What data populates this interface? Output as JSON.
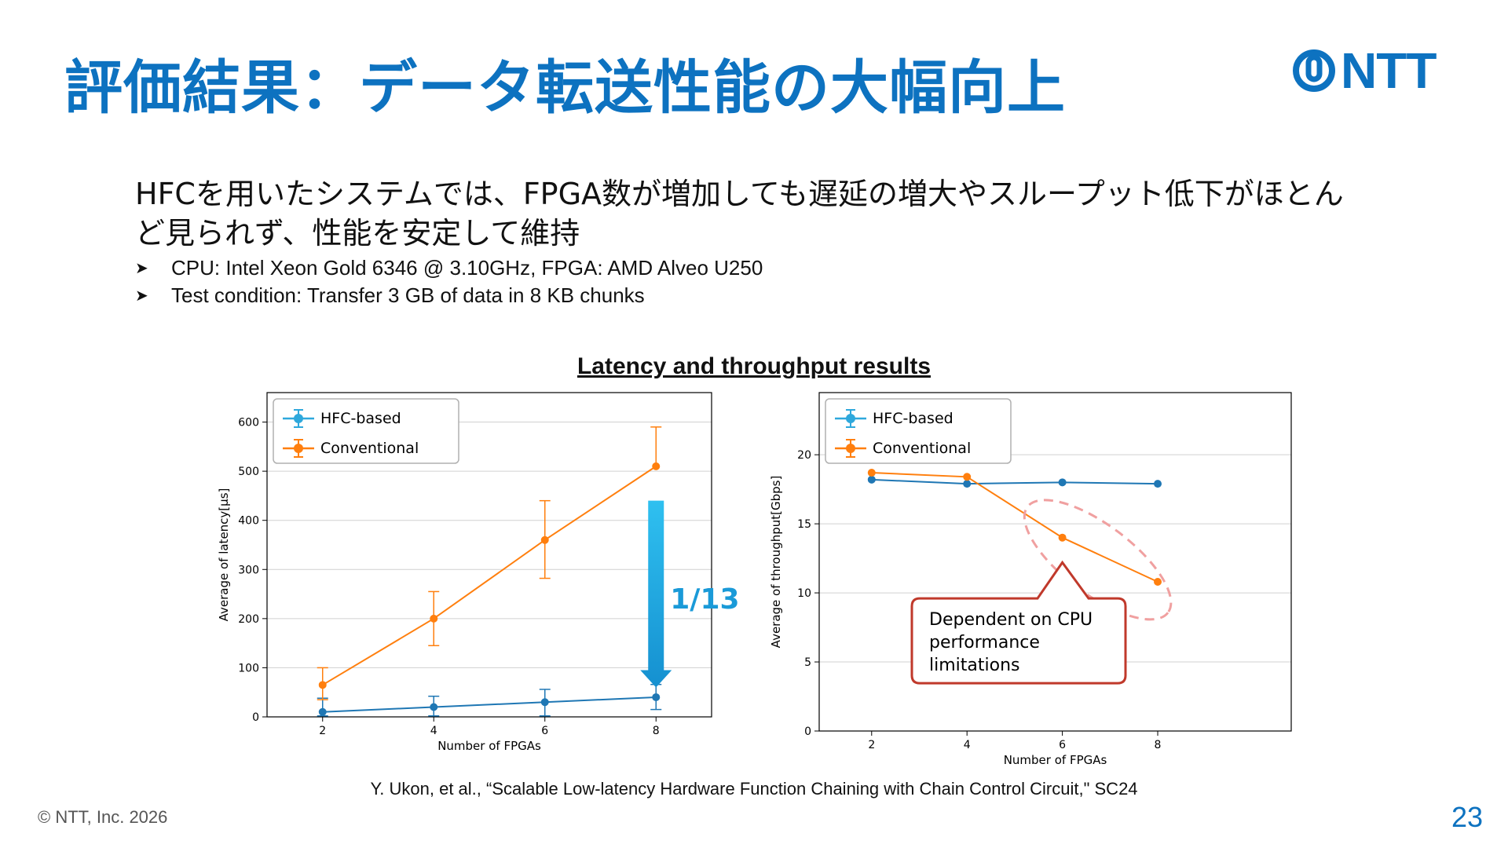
{
  "title": "評価結果：データ転送性能の大幅向上",
  "logo": {
    "text": "NTT",
    "color": "#0d72c0"
  },
  "lead_text": "HFCを用いたシステムでは、FPGA数が増加しても遅延の増大やスループット低下がほとんど見られず、性能を安定して維持",
  "bullets": [
    "CPU: Intel Xeon Gold 6346 @ 3.10GHz, FPGA: AMD Alveo U250",
    "Test condition: Transfer 3 GB of data in 8 KB chunks"
  ],
  "chart_section_title": "Latency and throughput results",
  "citation": "Y. Ukon, et al., “Scalable Low-latency Hardware Function Chaining with Chain Control Circuit,\" SC24",
  "copyright": "© NTT, Inc.  2026",
  "page_number": "23",
  "colors": {
    "hfc": "#1f77b4",
    "hfc_legend": "#2ea8dc",
    "conventional": "#ff7f0e",
    "accent": "#0d72c0",
    "callout": "#c0392b"
  },
  "chart_data": [
    {
      "type": "line",
      "xlabel": "Number of FPGAs",
      "ylabel": "Average of latency[μs]",
      "x": [
        2,
        4,
        6,
        8
      ],
      "ylim": [
        0,
        660
      ],
      "yticks": [
        0,
        100,
        200,
        300,
        400,
        500,
        600
      ],
      "grid": true,
      "legend_position": "top-left",
      "series": [
        {
          "name": "HFC-based",
          "values": [
            10,
            20,
            30,
            40
          ],
          "err_low": [
            8,
            18,
            28,
            25
          ],
          "err_high": [
            28,
            22,
            26,
            26
          ]
        },
        {
          "name": "Conventional",
          "values": [
            65,
            200,
            360,
            510
          ],
          "err_low": [
            30,
            55,
            78,
            0
          ],
          "err_high": [
            35,
            55,
            80,
            80
          ]
        }
      ],
      "annotation": {
        "text": "1/13",
        "kind": "down-arrow"
      }
    },
    {
      "type": "line",
      "xlabel": "Number of FPGAs",
      "ylabel": "Average of throughput[Gbps]",
      "x": [
        2,
        4,
        6,
        8
      ],
      "ylim": [
        0,
        24.5
      ],
      "yticks": [
        0,
        5,
        10,
        15,
        20
      ],
      "grid": true,
      "legend_position": "top-left",
      "series": [
        {
          "name": "HFC-based",
          "values": [
            18.2,
            17.9,
            18.0,
            17.9
          ]
        },
        {
          "name": "Conventional",
          "values": [
            18.7,
            18.4,
            14.0,
            10.8
          ]
        }
      ],
      "annotation": {
        "text": "Dependent on CPU performance limitations",
        "lines": [
          "Dependent on CPU",
          "performance",
          "limitations"
        ],
        "kind": "callout"
      }
    }
  ]
}
